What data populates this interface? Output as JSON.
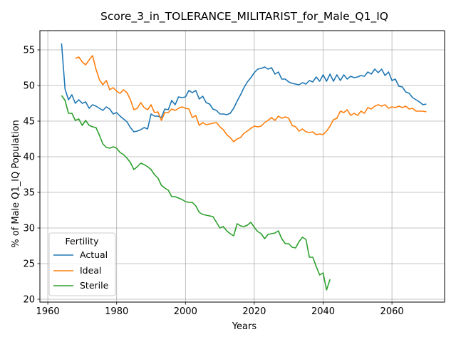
{
  "chart_data": {
    "type": "line",
    "title": "Score_3_in_TOLERANCE_MILITARIST_for_Male_Q1_IQ",
    "xlabel": "Years",
    "ylabel": "% of Male Q1_IQ Population",
    "xlim": [
      1957.7,
      2075.3
    ],
    "ylim": [
      19.6,
      57.7
    ],
    "xticks": [
      1960,
      1980,
      2000,
      2020,
      2040,
      2060
    ],
    "yticks": [
      20,
      25,
      30,
      35,
      40,
      45,
      50,
      55
    ],
    "grid": true,
    "legend": {
      "title": "Fertility",
      "placement": "lower-left"
    },
    "series": [
      {
        "name": "Actual",
        "color": "#1f77b4",
        "x": [
          1964,
          1965,
          1966,
          1967,
          1968,
          1969,
          1970,
          1971,
          1972,
          1973,
          1974,
          1975,
          1976,
          1977,
          1978,
          1979,
          1980,
          1981,
          1982,
          1983,
          1984,
          1985,
          1986,
          1987,
          1988,
          1989,
          1990,
          1991,
          1992,
          1993,
          1994,
          1995,
          1996,
          1997,
          1998,
          1999,
          2000,
          2001,
          2002,
          2003,
          2004,
          2005,
          2006,
          2007,
          2008,
          2009,
          2010,
          2011,
          2012,
          2013,
          2014,
          2015,
          2016,
          2017,
          2018,
          2019,
          2020,
          2021,
          2022,
          2023,
          2024,
          2025,
          2026,
          2027,
          2028,
          2029,
          2030,
          2031,
          2032,
          2033,
          2034,
          2035,
          2036,
          2037,
          2038,
          2039,
          2040,
          2041,
          2042,
          2043,
          2044,
          2045,
          2046,
          2047,
          2048,
          2049,
          2050,
          2051,
          2052,
          2053,
          2054,
          2055,
          2056,
          2057,
          2058,
          2059,
          2060,
          2061,
          2062,
          2063,
          2064,
          2065,
          2066,
          2067,
          2068,
          2069,
          2070
        ],
        "y": [
          55.9,
          49.5,
          48.0,
          48.7,
          47.5,
          48.0,
          47.5,
          47.7,
          46.8,
          47.3,
          47.1,
          46.8,
          46.5,
          47.0,
          46.7,
          46.0,
          46.2,
          45.7,
          45.3,
          44.9,
          44.1,
          43.5,
          43.6,
          43.8,
          44.1,
          43.9,
          46.0,
          45.7,
          45.7,
          45.5,
          46.7,
          46.6,
          47.9,
          47.3,
          48.4,
          48.3,
          48.4,
          49.3,
          49.0,
          49.3,
          48.1,
          48.5,
          47.6,
          47.4,
          46.7,
          46.5,
          46.0,
          46.0,
          45.9,
          46.1,
          46.8,
          47.8,
          48.7,
          49.7,
          50.5,
          51.1,
          51.8,
          52.3,
          52.4,
          52.6,
          52.3,
          52.5,
          51.6,
          51.9,
          50.9,
          50.9,
          50.5,
          50.3,
          50.2,
          50.1,
          50.4,
          50.2,
          50.7,
          50.5,
          51.2,
          50.6,
          51.5,
          50.6,
          51.6,
          50.6,
          51.5,
          50.7,
          51.5,
          50.9,
          51.3,
          51.1,
          51.2,
          51.4,
          51.3,
          51.9,
          51.6,
          52.3,
          51.8,
          52.3,
          51.4,
          51.9,
          50.7,
          50.9,
          49.9,
          49.8,
          49.1,
          48.9,
          48.3,
          48.0,
          47.7,
          47.3,
          47.4
        ]
      },
      {
        "name": "Ideal",
        "color": "#ff7f0e",
        "x": [
          1968,
          1969,
          1970,
          1971,
          1972,
          1973,
          1974,
          1975,
          1976,
          1977,
          1978,
          1979,
          1980,
          1981,
          1982,
          1983,
          1984,
          1985,
          1986,
          1987,
          1988,
          1989,
          1990,
          1991,
          1992,
          1993,
          1994,
          1995,
          1996,
          1997,
          1998,
          1999,
          2000,
          2001,
          2002,
          2003,
          2004,
          2005,
          2006,
          2007,
          2008,
          2009,
          2010,
          2011,
          2012,
          2013,
          2014,
          2015,
          2016,
          2017,
          2018,
          2019,
          2020,
          2021,
          2022,
          2023,
          2024,
          2025,
          2026,
          2027,
          2028,
          2029,
          2030,
          2031,
          2032,
          2033,
          2034,
          2035,
          2036,
          2037,
          2038,
          2039,
          2040,
          2041,
          2042,
          2043,
          2044,
          2045,
          2046,
          2047,
          2048,
          2049,
          2050,
          2051,
          2052,
          2053,
          2054,
          2055,
          2056,
          2057,
          2058,
          2059,
          2060,
          2061,
          2062,
          2063,
          2064,
          2065,
          2066,
          2067,
          2068,
          2069,
          2070
        ],
        "y": [
          53.8,
          54.0,
          53.3,
          52.9,
          53.6,
          54.2,
          52.3,
          50.8,
          50.1,
          50.7,
          49.4,
          49.7,
          49.2,
          48.9,
          49.4,
          49.0,
          48.0,
          46.6,
          46.8,
          47.6,
          46.9,
          46.6,
          47.3,
          46.2,
          46.3,
          45.1,
          46.2,
          46.2,
          46.7,
          46.5,
          46.8,
          47.0,
          46.8,
          46.7,
          45.5,
          45.8,
          44.4,
          44.8,
          44.5,
          44.6,
          44.7,
          44.8,
          44.2,
          43.8,
          43.1,
          42.7,
          42.1,
          42.5,
          42.7,
          43.3,
          43.6,
          44.0,
          44.3,
          44.2,
          44.3,
          44.8,
          45.1,
          45.5,
          45.1,
          45.7,
          45.4,
          45.6,
          45.4,
          44.4,
          44.2,
          43.6,
          43.9,
          43.5,
          43.4,
          43.5,
          43.1,
          43.2,
          43.1,
          43.6,
          44.3,
          45.2,
          45.4,
          46.4,
          46.2,
          46.6,
          45.8,
          46.1,
          45.8,
          46.4,
          46.1,
          46.9,
          46.7,
          47.1,
          47.3,
          47.1,
          47.3,
          46.8,
          47.0,
          46.9,
          47.1,
          46.9,
          47.1,
          46.7,
          46.8,
          46.4,
          46.4,
          46.4,
          46.3
        ]
      },
      {
        "name": "Sterile",
        "color": "#2ca02c",
        "x": [
          1964,
          1965,
          1966,
          1967,
          1968,
          1969,
          1970,
          1971,
          1972,
          1973,
          1974,
          1975,
          1976,
          1977,
          1978,
          1979,
          1980,
          1981,
          1982,
          1983,
          1984,
          1985,
          1986,
          1987,
          1988,
          1989,
          1990,
          1991,
          1992,
          1993,
          1994,
          1995,
          1996,
          1997,
          1998,
          1999,
          2000,
          2001,
          2002,
          2003,
          2004,
          2005,
          2006,
          2007,
          2008,
          2009,
          2010,
          2011,
          2012,
          2013,
          2014,
          2015,
          2016,
          2017,
          2018,
          2019,
          2020,
          2021,
          2022,
          2023,
          2024,
          2025,
          2026,
          2027,
          2028,
          2029,
          2030,
          2031,
          2032,
          2033,
          2034,
          2035,
          2036,
          2037,
          2038,
          2039,
          2040,
          2041,
          2042
        ],
        "y": [
          48.6,
          47.9,
          46.1,
          46.1,
          45.1,
          45.3,
          44.4,
          45.1,
          44.4,
          44.2,
          44.1,
          43.0,
          41.8,
          41.3,
          41.2,
          41.4,
          41.2,
          40.6,
          40.3,
          39.8,
          39.2,
          38.2,
          38.6,
          39.1,
          38.9,
          38.6,
          38.2,
          37.5,
          37.0,
          36.0,
          35.6,
          35.3,
          34.4,
          34.4,
          34.2,
          34.0,
          33.7,
          33.6,
          33.6,
          33.1,
          32.2,
          31.9,
          31.8,
          31.7,
          31.6,
          30.8,
          30.0,
          30.2,
          29.6,
          29.2,
          28.9,
          30.6,
          30.3,
          30.2,
          30.4,
          30.8,
          30.1,
          29.5,
          29.2,
          28.5,
          29.1,
          29.2,
          29.3,
          29.6,
          28.5,
          27.8,
          27.8,
          27.3,
          27.2,
          28.1,
          28.7,
          28.4,
          25.9,
          25.9,
          24.6,
          23.4,
          23.7,
          21.3,
          22.8
        ]
      }
    ]
  }
}
